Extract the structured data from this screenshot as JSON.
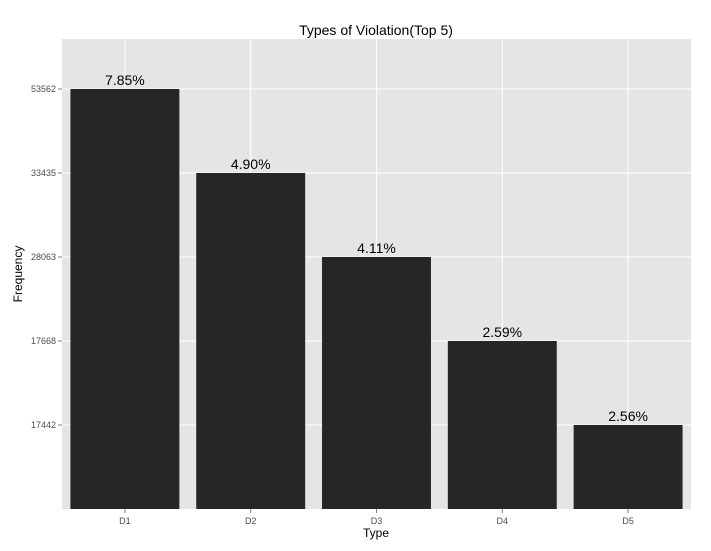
{
  "chart_data": {
    "type": "bar",
    "title": "Types of Violation(Top 5)",
    "xlabel": "Type",
    "ylabel": "Frequency",
    "categories": [
      "D1",
      "D2",
      "D3",
      "D4",
      "D5"
    ],
    "values": [
      53562,
      33435,
      28063,
      17668,
      17442
    ],
    "data_labels": [
      "7.85%",
      "4.90%",
      "4.11%",
      "2.59%",
      "2.56%"
    ],
    "y_scale": "discrete",
    "y_ticks": [
      "53562",
      "33435",
      "28063",
      "17668",
      "17442"
    ],
    "grid": true,
    "legend": "none",
    "colors": {
      "bar": "#262626",
      "panel": "#e5e5e5",
      "grid": "#ffffff",
      "tick_text": "#4d4d4d"
    }
  }
}
